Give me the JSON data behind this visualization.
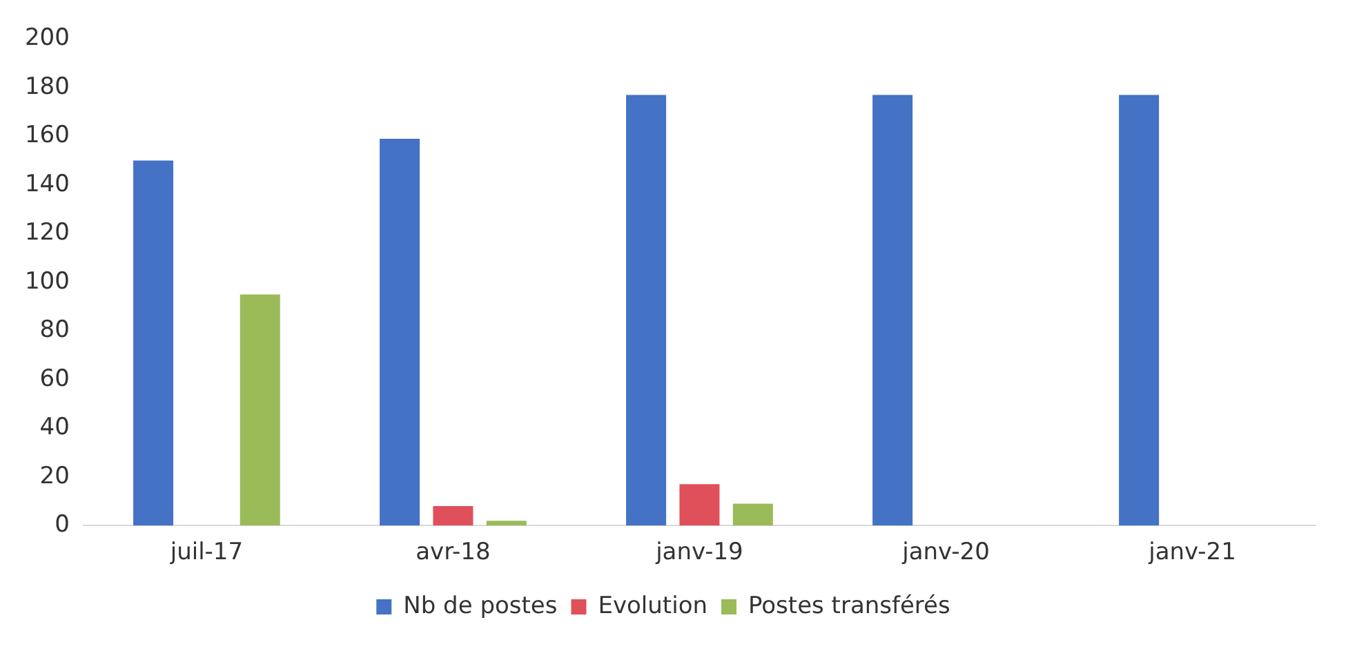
{
  "chart_data": {
    "type": "bar",
    "categories": [
      "juil-17",
      "avr-18",
      "janv-19",
      "janv-20",
      "janv-21"
    ],
    "series": [
      {
        "name": "Nb de postes",
        "color": "#4472c4",
        "values": [
          150,
          159,
          177,
          177,
          177
        ]
      },
      {
        "name": "Evolution",
        "color": "#e0505a",
        "values": [
          null,
          8,
          17,
          null,
          null
        ]
      },
      {
        "name": "Postes transférés",
        "color": "#9bbb59",
        "values": [
          95,
          2,
          9,
          null,
          null
        ]
      }
    ],
    "ylim": [
      0,
      200
    ],
    "yticks": [
      0,
      20,
      40,
      60,
      80,
      100,
      120,
      140,
      160,
      180,
      200
    ],
    "grid": false,
    "legend": "bottom"
  }
}
